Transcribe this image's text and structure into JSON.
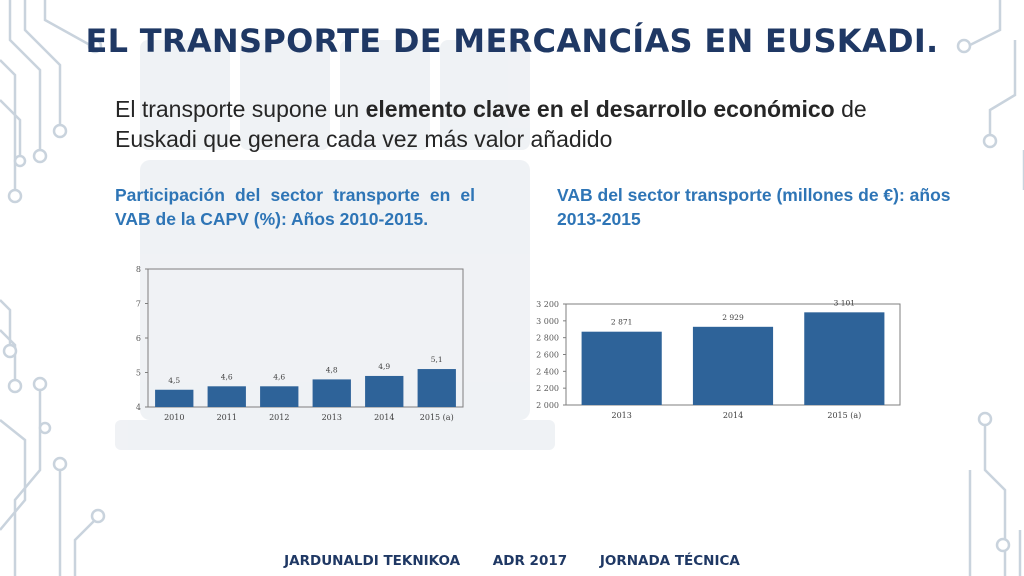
{
  "title": "EL TRANSPORTE DE MERCANCÍAS EN EUSKADI.",
  "intro": {
    "part1": "El transporte supone un ",
    "bold": "elemento clave en el desarrollo económico",
    "part2": " de Euskadi que  genera cada vez más valor añadido"
  },
  "left_chart_heading": "Participación del sector transporte en el VAB de la CAPV (%): Años 2010-2015.",
  "right_chart_heading": "VAB del sector transporte (millones de €): años 2013-2015",
  "footer": {
    "item1": "JARDUNALDI TEKNIKOA",
    "item2": "ADR 2017",
    "item3": "JORNADA TÉCNICA"
  },
  "colors": {
    "bar": "#2e6399",
    "accent": "#2e75b6",
    "title": "#1f3864",
    "circuit": "#c9d3dd"
  },
  "chart_data": [
    {
      "type": "bar",
      "categories": [
        "2010",
        "2011",
        "2012",
        "2013",
        "2014",
        "2015 (a)"
      ],
      "values": [
        4.5,
        4.6,
        4.6,
        4.8,
        4.9,
        5.1
      ],
      "value_labels": [
        "4,5",
        "4,6",
        "4,6",
        "4,8",
        "4,9",
        "5,1"
      ],
      "ylim": [
        4,
        8
      ],
      "yticks": [
        4,
        5,
        6,
        7,
        8
      ],
      "ytick_labels": [
        "4",
        "5",
        "6",
        "7",
        "8"
      ],
      "grid": false
    },
    {
      "type": "bar",
      "categories": [
        "2013",
        "2014",
        "2015 (a)"
      ],
      "values": [
        2871,
        2929,
        3101
      ],
      "value_labels": [
        "2 871",
        "2 929",
        "3 101"
      ],
      "ylim": [
        2000,
        3200
      ],
      "yticks": [
        2000,
        2200,
        2400,
        2600,
        2800,
        3000,
        3200
      ],
      "ytick_labels": [
        "2 000",
        "2 200",
        "2 400",
        "2 600",
        "2 800",
        "3 000",
        "3 200"
      ],
      "grid": false
    }
  ]
}
